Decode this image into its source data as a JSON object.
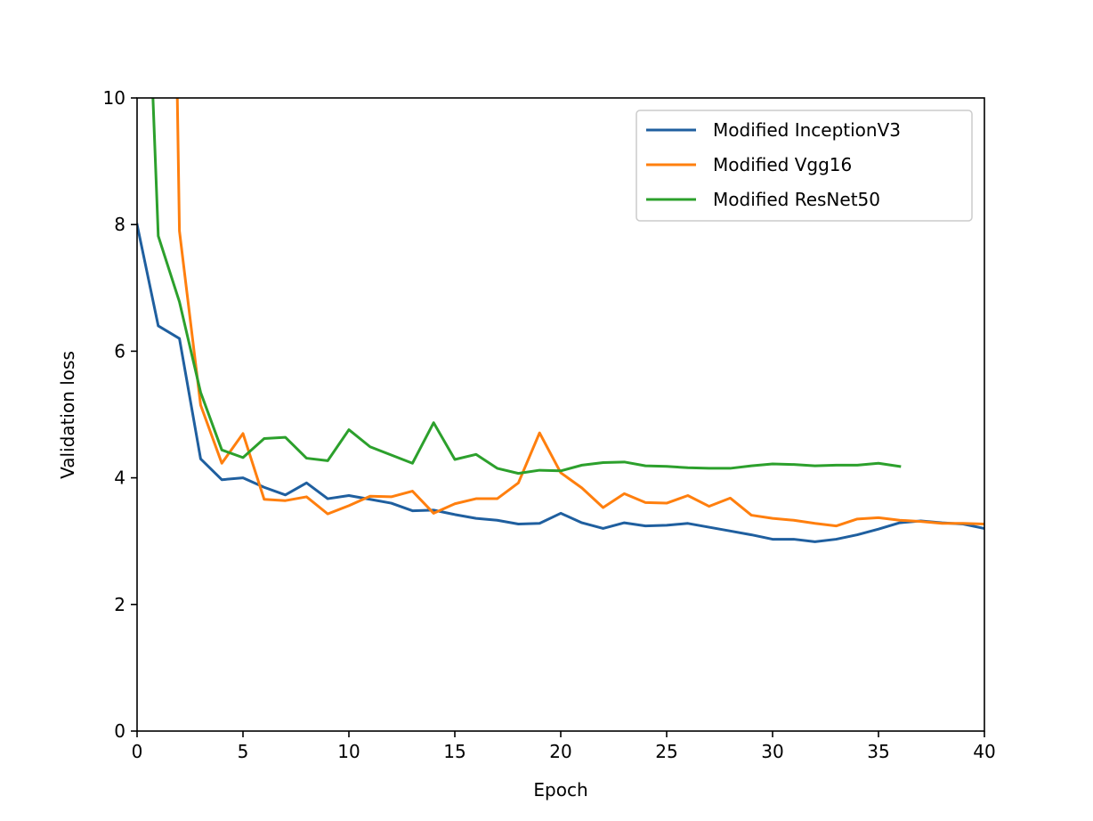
{
  "chart_data": {
    "type": "line",
    "xlabel": "Epoch",
    "ylabel": "Validation loss",
    "xlim": [
      0,
      40
    ],
    "ylim": [
      0,
      10
    ],
    "xticks": [
      "0",
      "5",
      "10",
      "15",
      "20",
      "25",
      "30",
      "35",
      "40"
    ],
    "yticks": [
      "0",
      "2",
      "4",
      "6",
      "8",
      "10"
    ],
    "grid": false,
    "legend_position": "top-right",
    "series": [
      {
        "name": "Modified InceptionV3",
        "color": "#1f5f9f",
        "x": [
          0,
          1,
          2,
          3,
          4,
          5,
          6,
          7,
          8,
          9,
          10,
          11,
          12,
          13,
          14,
          15,
          16,
          17,
          18,
          19,
          20,
          21,
          22,
          23,
          24,
          25,
          26,
          27,
          28,
          29,
          30,
          31,
          32,
          33,
          34,
          35,
          36,
          37,
          38,
          39,
          40
        ],
        "y": [
          8.0,
          6.4,
          6.2,
          4.3,
          3.97,
          4.0,
          3.85,
          3.73,
          3.92,
          3.67,
          3.72,
          3.66,
          3.6,
          3.48,
          3.49,
          3.42,
          3.36,
          3.33,
          3.27,
          3.28,
          3.44,
          3.29,
          3.2,
          3.29,
          3.24,
          3.25,
          3.28,
          3.22,
          3.16,
          3.1,
          3.03,
          3.03,
          2.99,
          3.03,
          3.1,
          3.19,
          3.29,
          3.32,
          3.29,
          3.27,
          3.2
        ]
      },
      {
        "name": "Modified Vgg16",
        "color": "#ff7f0e",
        "x": [
          1.9,
          2,
          3,
          4,
          5,
          6,
          7,
          8,
          9,
          10,
          11,
          12,
          13,
          14,
          15,
          16,
          17,
          18,
          19,
          20,
          21,
          22,
          23,
          24,
          25,
          26,
          27,
          28,
          29,
          30,
          31,
          32,
          33,
          34,
          35,
          36,
          37,
          38,
          39,
          40
        ],
        "y": [
          10.0,
          7.9,
          5.15,
          4.23,
          4.7,
          3.66,
          3.64,
          3.7,
          3.43,
          3.56,
          3.71,
          3.7,
          3.79,
          3.44,
          3.59,
          3.67,
          3.67,
          3.92,
          4.71,
          4.08,
          3.84,
          3.53,
          3.75,
          3.61,
          3.6,
          3.72,
          3.55,
          3.68,
          3.41,
          3.36,
          3.33,
          3.28,
          3.24,
          3.35,
          3.37,
          3.33,
          3.31,
          3.28,
          3.28,
          3.27
        ]
      },
      {
        "name": "Modified ResNet50",
        "color": "#2ca02c",
        "x": [
          0.75,
          1,
          2,
          3,
          4,
          5,
          6,
          7,
          8,
          9,
          10,
          11,
          12,
          13,
          14,
          15,
          16,
          17,
          18,
          19,
          20,
          21,
          22,
          23,
          24,
          25,
          26,
          27,
          28,
          29,
          30,
          31,
          32,
          33,
          34,
          35,
          36
        ],
        "y": [
          10.0,
          7.82,
          6.78,
          5.35,
          4.44,
          4.32,
          4.62,
          4.64,
          4.31,
          4.27,
          4.76,
          4.49,
          4.36,
          4.23,
          4.87,
          4.29,
          4.37,
          4.15,
          4.07,
          4.12,
          4.11,
          4.2,
          4.24,
          4.25,
          4.19,
          4.18,
          4.16,
          4.15,
          4.15,
          4.19,
          4.22,
          4.21,
          4.19,
          4.2,
          4.2,
          4.23,
          4.18
        ]
      }
    ]
  }
}
